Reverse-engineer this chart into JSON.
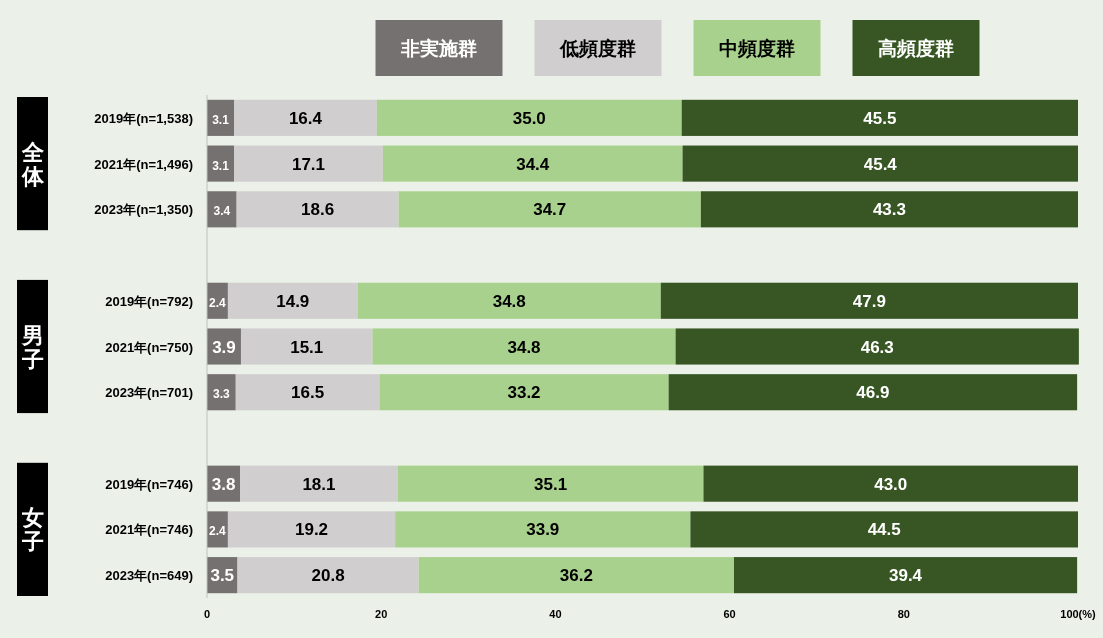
{
  "chart_data": {
    "type": "bar",
    "orientation": "horizontal",
    "stacked": true,
    "legend": "top",
    "grid": false,
    "categories": [
      "2019年(n=1,538)",
      "2021年(n=1,496)",
      "2023年(n=1,350)",
      null,
      "2019年(n=792)",
      "2021年(n=750)",
      "2023年(n=701)",
      null,
      "2019年(n=746)",
      "2021年(n=746)",
      "2023年(n=649)"
    ],
    "series": [
      {
        "name": "非実施群",
        "color": "#767171",
        "values": [
          3.1,
          3.1,
          3.4,
          null,
          2.4,
          3.9,
          3.3,
          null,
          3.8,
          2.4,
          3.5
        ],
        "value_labels": [
          "3.1",
          "3.1",
          "3.4",
          null,
          "2.4",
          "3.9",
          "3.3",
          null,
          "3.8",
          "2.4",
          "3.5"
        ]
      },
      {
        "name": "低頻度群",
        "color": "#d0cece",
        "values": [
          16.4,
          17.1,
          18.6,
          null,
          14.9,
          15.1,
          16.5,
          null,
          18.1,
          19.2,
          20.8
        ],
        "value_labels": [
          "16.4",
          "17.1",
          "18.6",
          null,
          "14.9",
          "15.1",
          "16.5",
          null,
          "18.1",
          "19.2",
          "20.8"
        ]
      },
      {
        "name": "中頻度群",
        "color": "#a9d18e",
        "values": [
          35.0,
          34.4,
          34.7,
          null,
          34.8,
          34.8,
          33.2,
          null,
          35.1,
          33.9,
          36.2
        ],
        "value_labels": [
          "35.0",
          "34.4",
          "34.7",
          null,
          "34.8",
          "34.8",
          "33.2",
          null,
          "35.1",
          "33.9",
          "36.2"
        ]
      },
      {
        "name": "高頻度群",
        "color": "#375623",
        "values": [
          45.5,
          45.4,
          43.3,
          null,
          47.9,
          46.3,
          46.9,
          null,
          43.0,
          44.5,
          39.4
        ],
        "value_labels": [
          "45.5",
          "45.4",
          "43.3",
          null,
          "47.9",
          "46.3",
          "46.9",
          null,
          "43.0",
          "44.5",
          "39.4"
        ]
      }
    ],
    "xlim": [
      0,
      100
    ],
    "xticks": [
      0,
      20,
      40,
      60,
      80,
      {
        "value": 100,
        "label": "100(%)"
      }
    ],
    "annotations": [
      "全体",
      "男子",
      "女子"
    ]
  }
}
